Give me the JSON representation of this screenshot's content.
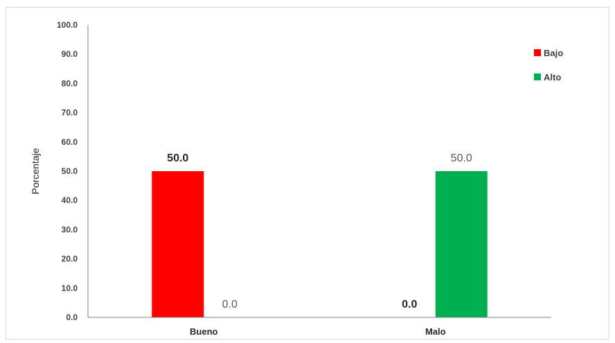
{
  "chart_data": {
    "type": "bar",
    "categories": [
      "Bueno",
      "Malo"
    ],
    "series": [
      {
        "name": "Bajo",
        "values": [
          50.0,
          0.0
        ],
        "color": "#ff0000"
      },
      {
        "name": "Alto",
        "values": [
          0.0,
          50.0
        ],
        "color": "#00b050"
      }
    ],
    "data_labels": [
      [
        "50.0",
        "0.0"
      ],
      [
        "0.0",
        "50.0"
      ]
    ],
    "ylabel": "Porcentaje",
    "xlabel": "",
    "ylim": [
      0,
      100
    ],
    "yticks": [
      "0.0",
      "10.0",
      "20.0",
      "30.0",
      "40.0",
      "50.0",
      "60.0",
      "70.0",
      "80.0",
      "90.0",
      "100.0"
    ],
    "grid": false,
    "legend_position": "top-right"
  }
}
